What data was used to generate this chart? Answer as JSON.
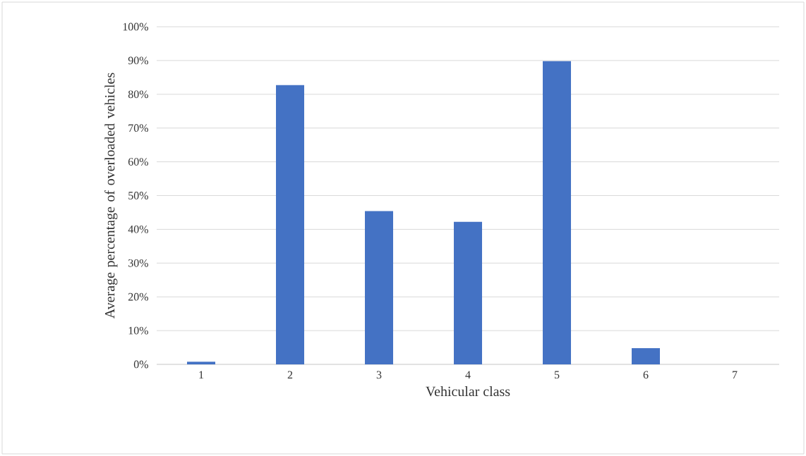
{
  "chart_data": {
    "type": "bar",
    "xlabel": "Vehicular class",
    "ylabel": "Average percentage of overloaded vehicles",
    "categories": [
      "1",
      "2",
      "3",
      "4",
      "5",
      "6",
      "7"
    ],
    "values": [
      0.8,
      82.7,
      45.4,
      42.2,
      89.8,
      4.8,
      0
    ],
    "color": "#4472c4",
    "ylim": [
      0,
      100
    ],
    "yticks": [
      {
        "value": 0,
        "label": "0%"
      },
      {
        "value": 10,
        "label": "10%"
      },
      {
        "value": 20,
        "label": "20%"
      },
      {
        "value": 30,
        "label": "30%"
      },
      {
        "value": 40,
        "label": "40%"
      },
      {
        "value": 50,
        "label": "50%"
      },
      {
        "value": 60,
        "label": "60%"
      },
      {
        "value": 70,
        "label": "70%"
      },
      {
        "value": 80,
        "label": "80%"
      },
      {
        "value": 90,
        "label": "90%"
      },
      {
        "value": 100,
        "label": "100%"
      }
    ],
    "grid": "y"
  }
}
